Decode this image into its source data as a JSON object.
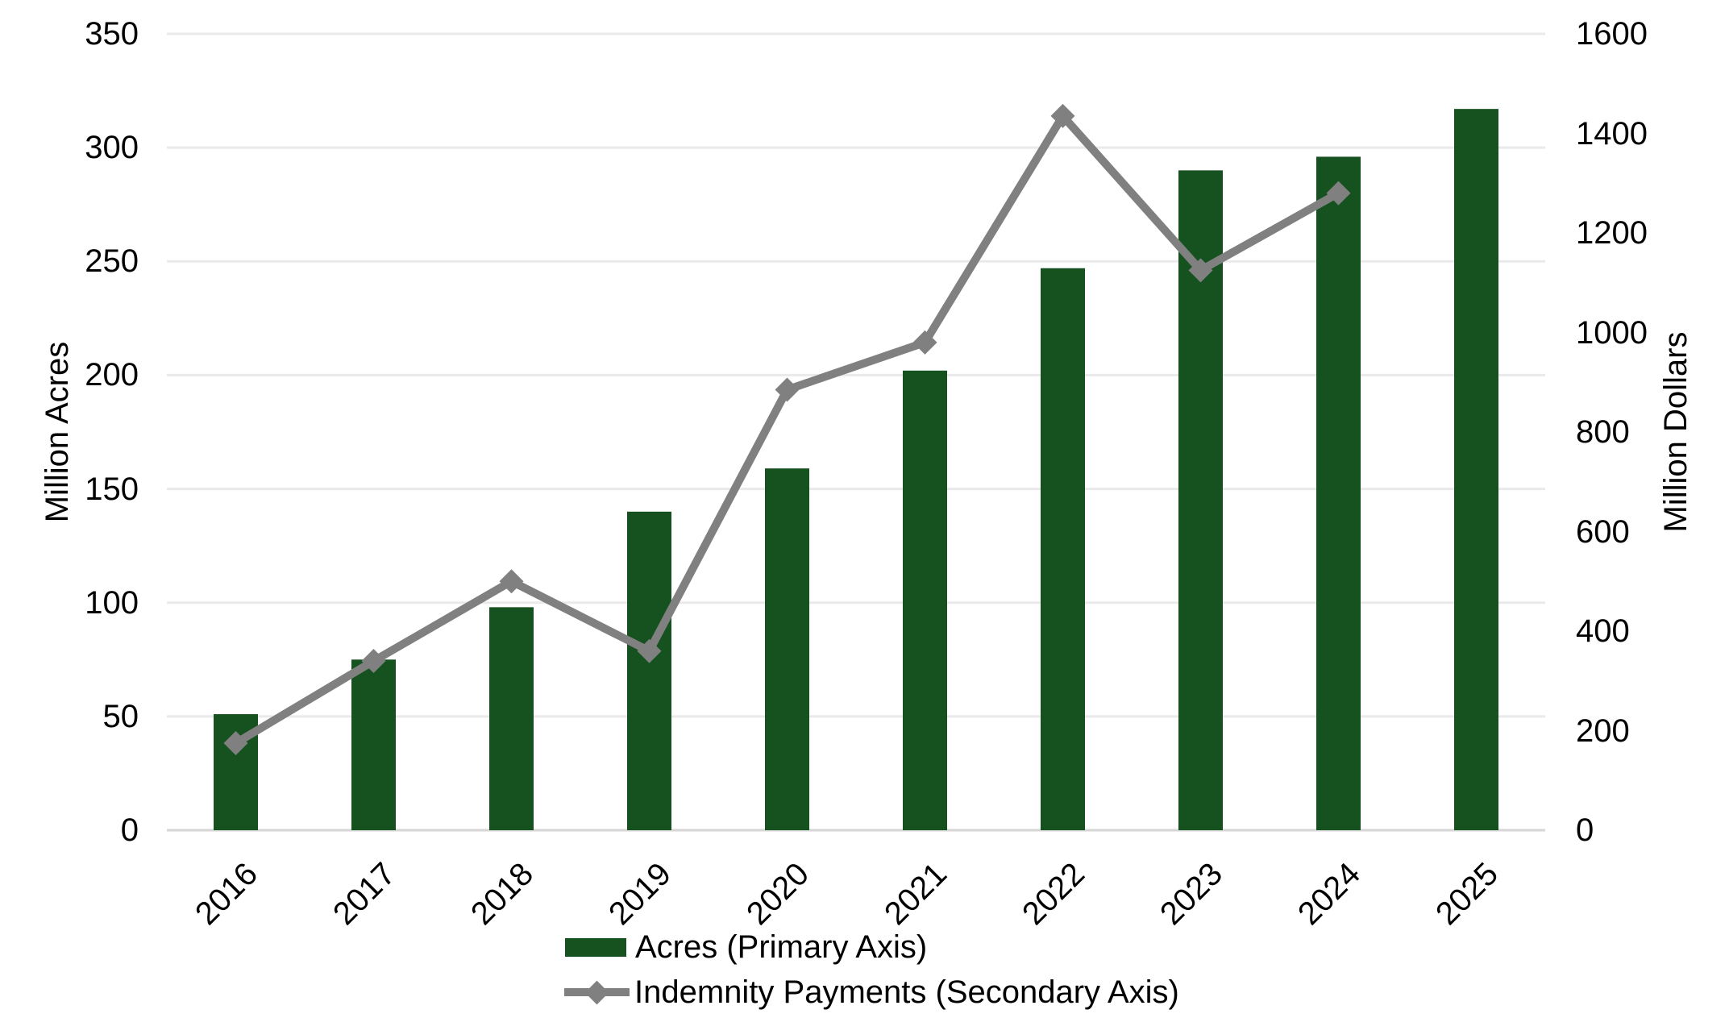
{
  "chart_data": {
    "type": "bar",
    "subtype": "combo-bar-line-dual-axis",
    "categories": [
      "2016",
      "2017",
      "2018",
      "2019",
      "2020",
      "2021",
      "2022",
      "2023",
      "2024",
      "2025"
    ],
    "series": [
      {
        "name": "Acres (Primary Axis)",
        "type": "bar",
        "axis": "primary",
        "values": [
          51,
          75,
          98,
          140,
          159,
          202,
          247,
          290,
          296,
          317
        ]
      },
      {
        "name": "Indemnity Payments (Secondary Axis)",
        "type": "line",
        "axis": "secondary",
        "marker": "diamond",
        "values": [
          175,
          340,
          500,
          360,
          885,
          980,
          1435,
          1125,
          1280,
          null
        ]
      }
    ],
    "primary_axis": {
      "title": "Million Acres",
      "min": 0,
      "max": 350,
      "step": 50,
      "ticks": [
        0,
        50,
        100,
        150,
        200,
        250,
        300,
        350
      ]
    },
    "secondary_axis": {
      "title": "Million Dollars",
      "min": 0,
      "max": 1600,
      "step": 200,
      "ticks": [
        0,
        200,
        400,
        600,
        800,
        1000,
        1200,
        1400,
        1600
      ]
    },
    "grid": true,
    "legend_position": "bottom",
    "title": ""
  },
  "colors": {
    "bar": "#16521f",
    "line": "#808080",
    "gridline": "#eaeaea",
    "axis_line": "#d6d6d6",
    "text": "#000000"
  },
  "legend": {
    "items": [
      {
        "label": "Acres (Primary Axis)",
        "swatch": "bar-swatch"
      },
      {
        "label": "Indemnity Payments (Secondary Axis)",
        "swatch": "line-diamond-swatch"
      }
    ]
  }
}
